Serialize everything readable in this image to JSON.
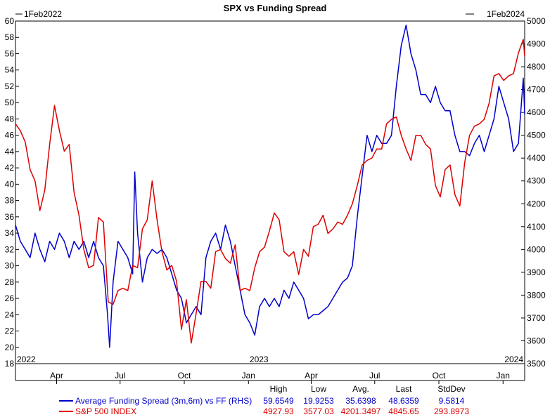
{
  "chart_data": {
    "type": "line",
    "title": "SPX vs Funding Spread",
    "date_start_label": "1Feb2022",
    "date_end_label": "1Feb2024",
    "left_axis": {
      "min": 18,
      "max": 60,
      "ticks": [
        "60",
        "58",
        "56",
        "54",
        "52",
        "50",
        "48",
        "46",
        "44",
        "42",
        "40",
        "38",
        "36",
        "34",
        "32",
        "30",
        "28",
        "26",
        "24",
        "22",
        "20",
        "18"
      ]
    },
    "right_axis": {
      "min": 3500,
      "max": 5000,
      "ticks": [
        "5000",
        "4900",
        "4800",
        "4700",
        "4600",
        "4500",
        "4400",
        "4300",
        "4200",
        "4100",
        "4000",
        "3900",
        "3800",
        "3700",
        "3600",
        "3500"
      ]
    },
    "x_months": [
      "Apr",
      "Jul",
      "Oct",
      "Jan",
      "Apr",
      "Jul",
      "Oct",
      "Jan"
    ],
    "year_labels": [
      "2022",
      "2023",
      "2024"
    ],
    "grid": false,
    "legend_position": "bottom",
    "legend_headers": [
      "High",
      "Low",
      "Avg.",
      "Last",
      "StdDev"
    ],
    "series": [
      {
        "name": "Average Funding Spread (3m,6m) vs FF (RHS)",
        "color": "#0000cc",
        "axis": "left",
        "stats": [
          "59.6549",
          "19.9253",
          "35.6398",
          "48.6359",
          "9.5814"
        ],
        "points": [
          [
            "2022-02-01",
            35
          ],
          [
            "2022-02-08",
            33
          ],
          [
            "2022-02-15",
            32
          ],
          [
            "2022-02-22",
            31
          ],
          [
            "2022-03-01",
            34
          ],
          [
            "2022-03-08",
            32
          ],
          [
            "2022-03-15",
            30.5
          ],
          [
            "2022-03-22",
            33
          ],
          [
            "2022-03-29",
            32
          ],
          [
            "2022-04-05",
            34
          ],
          [
            "2022-04-12",
            33
          ],
          [
            "2022-04-19",
            31
          ],
          [
            "2022-04-26",
            33
          ],
          [
            "2022-05-03",
            32
          ],
          [
            "2022-05-10",
            33
          ],
          [
            "2022-05-17",
            31
          ],
          [
            "2022-05-24",
            33
          ],
          [
            "2022-05-31",
            31
          ],
          [
            "2022-06-07",
            30
          ],
          [
            "2022-06-13",
            24
          ],
          [
            "2022-06-16",
            20
          ],
          [
            "2022-06-21",
            28
          ],
          [
            "2022-06-28",
            33
          ],
          [
            "2022-07-05",
            32
          ],
          [
            "2022-07-12",
            31
          ],
          [
            "2022-07-19",
            29
          ],
          [
            "2022-07-22",
            41.5
          ],
          [
            "2022-07-26",
            34
          ],
          [
            "2022-08-02",
            28
          ],
          [
            "2022-08-09",
            31
          ],
          [
            "2022-08-16",
            32
          ],
          [
            "2022-08-23",
            31.5
          ],
          [
            "2022-08-30",
            32
          ],
          [
            "2022-09-06",
            31
          ],
          [
            "2022-09-13",
            29
          ],
          [
            "2022-09-20",
            27
          ],
          [
            "2022-09-27",
            26
          ],
          [
            "2022-10-04",
            23
          ],
          [
            "2022-10-11",
            24
          ],
          [
            "2022-10-18",
            25
          ],
          [
            "2022-10-25",
            24
          ],
          [
            "2022-11-01",
            31
          ],
          [
            "2022-11-08",
            33
          ],
          [
            "2022-11-15",
            34
          ],
          [
            "2022-11-22",
            32
          ],
          [
            "2022-11-29",
            35
          ],
          [
            "2022-12-06",
            33
          ],
          [
            "2022-12-13",
            30
          ],
          [
            "2022-12-20",
            27
          ],
          [
            "2022-12-27",
            24
          ],
          [
            "2023-01-03",
            23
          ],
          [
            "2023-01-10",
            21.5
          ],
          [
            "2023-01-17",
            25
          ],
          [
            "2023-01-24",
            26
          ],
          [
            "2023-01-31",
            25
          ],
          [
            "2023-02-07",
            26
          ],
          [
            "2023-02-14",
            25
          ],
          [
            "2023-02-21",
            27
          ],
          [
            "2023-02-28",
            26
          ],
          [
            "2023-03-07",
            28
          ],
          [
            "2023-03-14",
            27
          ],
          [
            "2023-03-21",
            26
          ],
          [
            "2023-03-28",
            23.5
          ],
          [
            "2023-04-04",
            24
          ],
          [
            "2023-04-11",
            24
          ],
          [
            "2023-04-18",
            24.5
          ],
          [
            "2023-04-25",
            25
          ],
          [
            "2023-05-02",
            26
          ],
          [
            "2023-05-09",
            27
          ],
          [
            "2023-05-16",
            28
          ],
          [
            "2023-05-23",
            28.5
          ],
          [
            "2023-05-30",
            30
          ],
          [
            "2023-06-06",
            36
          ],
          [
            "2023-06-13",
            41
          ],
          [
            "2023-06-20",
            46
          ],
          [
            "2023-06-27",
            44
          ],
          [
            "2023-07-04",
            46
          ],
          [
            "2023-07-11",
            45
          ],
          [
            "2023-07-18",
            45
          ],
          [
            "2023-07-25",
            46
          ],
          [
            "2023-08-01",
            52
          ],
          [
            "2023-08-08",
            57
          ],
          [
            "2023-08-15",
            59.5
          ],
          [
            "2023-08-22",
            56
          ],
          [
            "2023-08-29",
            54
          ],
          [
            "2023-09-05",
            51
          ],
          [
            "2023-09-12",
            51
          ],
          [
            "2023-09-19",
            50
          ],
          [
            "2023-09-26",
            52
          ],
          [
            "2023-10-03",
            50
          ],
          [
            "2023-10-10",
            49
          ],
          [
            "2023-10-17",
            49
          ],
          [
            "2023-10-24",
            46
          ],
          [
            "2023-10-31",
            44
          ],
          [
            "2023-11-07",
            44
          ],
          [
            "2023-11-14",
            43.5
          ],
          [
            "2023-11-21",
            45
          ],
          [
            "2023-11-28",
            46
          ],
          [
            "2023-12-05",
            44
          ],
          [
            "2023-12-12",
            46
          ],
          [
            "2023-12-19",
            48
          ],
          [
            "2023-12-26",
            52
          ],
          [
            "2024-01-02",
            50
          ],
          [
            "2024-01-09",
            48
          ],
          [
            "2024-01-16",
            44
          ],
          [
            "2024-01-23",
            45
          ],
          [
            "2024-01-30",
            53
          ],
          [
            "2024-02-01",
            48.6
          ]
        ]
      },
      {
        "name": "S&P 500 INDEX",
        "color": "#dd0000",
        "axis": "right",
        "stats": [
          "4927.93",
          "3577.03",
          "4201.3497",
          "4845.65",
          "293.8973"
        ],
        "points": [
          [
            "2022-02-01",
            4550
          ],
          [
            "2022-02-08",
            4520
          ],
          [
            "2022-02-15",
            4470
          ],
          [
            "2022-02-22",
            4350
          ],
          [
            "2022-03-01",
            4300
          ],
          [
            "2022-03-08",
            4170
          ],
          [
            "2022-03-15",
            4260
          ],
          [
            "2022-03-22",
            4460
          ],
          [
            "2022-03-29",
            4630
          ],
          [
            "2022-04-05",
            4520
          ],
          [
            "2022-04-12",
            4430
          ],
          [
            "2022-04-19",
            4460
          ],
          [
            "2022-04-26",
            4250
          ],
          [
            "2022-05-03",
            4150
          ],
          [
            "2022-05-10",
            4000
          ],
          [
            "2022-05-17",
            3920
          ],
          [
            "2022-05-24",
            3930
          ],
          [
            "2022-05-31",
            4140
          ],
          [
            "2022-06-07",
            4120
          ],
          [
            "2022-06-14",
            3770
          ],
          [
            "2022-06-21",
            3760
          ],
          [
            "2022-06-28",
            3820
          ],
          [
            "2022-07-05",
            3830
          ],
          [
            "2022-07-12",
            3820
          ],
          [
            "2022-07-19",
            3930
          ],
          [
            "2022-07-26",
            3920
          ],
          [
            "2022-08-02",
            4090
          ],
          [
            "2022-08-09",
            4130
          ],
          [
            "2022-08-16",
            4300
          ],
          [
            "2022-08-23",
            4130
          ],
          [
            "2022-08-30",
            3990
          ],
          [
            "2022-09-06",
            3910
          ],
          [
            "2022-09-13",
            3930
          ],
          [
            "2022-09-20",
            3860
          ],
          [
            "2022-09-27",
            3650
          ],
          [
            "2022-10-04",
            3780
          ],
          [
            "2022-10-11",
            3590
          ],
          [
            "2022-10-18",
            3720
          ],
          [
            "2022-10-25",
            3860
          ],
          [
            "2022-11-01",
            3860
          ],
          [
            "2022-11-08",
            3830
          ],
          [
            "2022-11-15",
            3990
          ],
          [
            "2022-11-22",
            4000
          ],
          [
            "2022-11-29",
            3960
          ],
          [
            "2022-12-06",
            3940
          ],
          [
            "2022-12-13",
            4020
          ],
          [
            "2022-12-20",
            3820
          ],
          [
            "2022-12-27",
            3830
          ],
          [
            "2023-01-03",
            3820
          ],
          [
            "2023-01-10",
            3920
          ],
          [
            "2023-01-17",
            3990
          ],
          [
            "2023-01-24",
            4010
          ],
          [
            "2023-01-31",
            4080
          ],
          [
            "2023-02-07",
            4160
          ],
          [
            "2023-02-14",
            4130
          ],
          [
            "2023-02-21",
            3990
          ],
          [
            "2023-02-28",
            3970
          ],
          [
            "2023-03-07",
            3990
          ],
          [
            "2023-03-14",
            3890
          ],
          [
            "2023-03-21",
            4000
          ],
          [
            "2023-03-28",
            3970
          ],
          [
            "2023-04-04",
            4100
          ],
          [
            "2023-04-11",
            4110
          ],
          [
            "2023-04-18",
            4150
          ],
          [
            "2023-04-25",
            4070
          ],
          [
            "2023-05-02",
            4090
          ],
          [
            "2023-05-09",
            4120
          ],
          [
            "2023-05-16",
            4110
          ],
          [
            "2023-05-23",
            4150
          ],
          [
            "2023-05-30",
            4200
          ],
          [
            "2023-06-06",
            4280
          ],
          [
            "2023-06-13",
            4370
          ],
          [
            "2023-06-20",
            4390
          ],
          [
            "2023-06-27",
            4400
          ],
          [
            "2023-07-04",
            4440
          ],
          [
            "2023-07-11",
            4440
          ],
          [
            "2023-07-18",
            4550
          ],
          [
            "2023-07-25",
            4570
          ],
          [
            "2023-08-01",
            4580
          ],
          [
            "2023-08-08",
            4500
          ],
          [
            "2023-08-15",
            4440
          ],
          [
            "2023-08-22",
            4390
          ],
          [
            "2023-08-29",
            4500
          ],
          [
            "2023-09-05",
            4500
          ],
          [
            "2023-09-12",
            4460
          ],
          [
            "2023-09-19",
            4440
          ],
          [
            "2023-09-26",
            4280
          ],
          [
            "2023-10-03",
            4230
          ],
          [
            "2023-10-10",
            4350
          ],
          [
            "2023-10-17",
            4370
          ],
          [
            "2023-10-24",
            4240
          ],
          [
            "2023-10-31",
            4190
          ],
          [
            "2023-11-07",
            4380
          ],
          [
            "2023-11-14",
            4500
          ],
          [
            "2023-11-21",
            4540
          ],
          [
            "2023-11-28",
            4550
          ],
          [
            "2023-12-05",
            4570
          ],
          [
            "2023-12-12",
            4640
          ],
          [
            "2023-12-19",
            4760
          ],
          [
            "2023-12-26",
            4770
          ],
          [
            "2024-01-02",
            4740
          ],
          [
            "2024-01-09",
            4760
          ],
          [
            "2024-01-16",
            4770
          ],
          [
            "2024-01-23",
            4860
          ],
          [
            "2024-01-30",
            4920
          ],
          [
            "2024-02-01",
            4845.65
          ]
        ]
      }
    ]
  }
}
